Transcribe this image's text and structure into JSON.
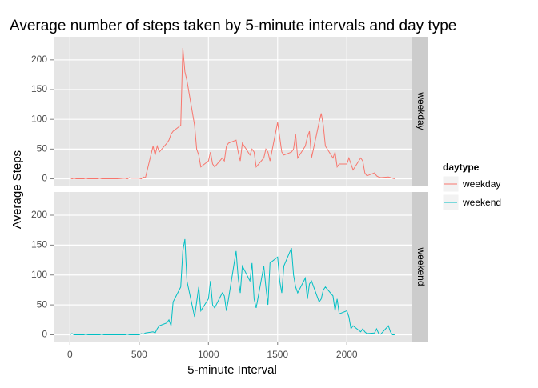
{
  "chart_data": {
    "type": "line",
    "title": "Average number of steps taken by 5-minute intervals and day type",
    "xlabel": "5-minute Interval",
    "ylabel": "Average Steps",
    "legend_title": "daytype",
    "x": [
      0,
      15,
      30,
      45,
      100,
      115,
      130,
      145,
      200,
      215,
      230,
      245,
      300,
      315,
      330,
      345,
      400,
      415,
      430,
      445,
      500,
      515,
      530,
      545,
      600,
      615,
      630,
      645,
      700,
      715,
      730,
      745,
      800,
      815,
      830,
      845,
      900,
      915,
      930,
      945,
      1000,
      1015,
      1030,
      1045,
      1100,
      1115,
      1130,
      1145,
      1200,
      1215,
      1230,
      1245,
      1300,
      1315,
      1330,
      1345,
      1400,
      1415,
      1430,
      1445,
      1500,
      1515,
      1530,
      1545,
      1600,
      1615,
      1630,
      1645,
      1700,
      1715,
      1730,
      1745,
      1800,
      1815,
      1830,
      1845,
      1900,
      1915,
      1930,
      1945,
      2000,
      2015,
      2030,
      2045,
      2100,
      2115,
      2130,
      2145,
      2200,
      2215,
      2230,
      2245,
      2300,
      2315,
      2330,
      2345
    ],
    "series": [
      {
        "name": "weekday",
        "color": "#F8766D",
        "values": [
          2,
          0,
          1,
          0,
          0,
          1,
          0,
          0,
          0,
          1,
          0,
          0,
          0,
          0,
          0,
          0,
          1,
          0,
          2,
          1,
          1,
          0,
          3,
          2,
          55,
          40,
          55,
          45,
          60,
          65,
          75,
          80,
          90,
          220,
          180,
          165,
          90,
          50,
          40,
          20,
          30,
          45,
          25,
          20,
          35,
          30,
          55,
          60,
          65,
          45,
          30,
          60,
          40,
          50,
          45,
          20,
          35,
          50,
          45,
          30,
          95,
          70,
          45,
          40,
          45,
          50,
          75,
          35,
          55,
          70,
          80,
          35,
          95,
          110,
          90,
          55,
          35,
          45,
          20,
          25,
          25,
          35,
          25,
          15,
          35,
          30,
          10,
          5,
          10,
          5,
          3,
          2,
          3,
          2,
          1,
          0
        ]
      },
      {
        "name": "weekend",
        "color": "#00BFC4",
        "values": [
          0,
          2,
          0,
          0,
          0,
          1,
          0,
          0,
          0,
          0,
          1,
          0,
          0,
          0,
          0,
          0,
          0,
          1,
          0,
          0,
          0,
          2,
          1,
          3,
          5,
          3,
          10,
          15,
          20,
          25,
          15,
          55,
          80,
          140,
          160,
          90,
          30,
          55,
          80,
          40,
          60,
          90,
          50,
          45,
          70,
          65,
          40,
          60,
          140,
          95,
          70,
          115,
          90,
          120,
          60,
          45,
          115,
          80,
          50,
          120,
          130,
          90,
          70,
          115,
          145,
          100,
          80,
          70,
          95,
          60,
          85,
          90,
          55,
          60,
          75,
          80,
          65,
          40,
          60,
          35,
          40,
          30,
          10,
          15,
          5,
          10,
          5,
          2,
          3,
          10,
          2,
          1,
          15,
          5,
          0,
          0
        ]
      }
    ],
    "xlim": [
      -117.75,
      2472.75
    ],
    "ylim": [
      -11.4,
      238.8
    ],
    "xticks": [
      0,
      500,
      1000,
      1500,
      2000
    ],
    "yticks": [
      0,
      50,
      100,
      150,
      200
    ],
    "grid": true,
    "legend": "right"
  }
}
